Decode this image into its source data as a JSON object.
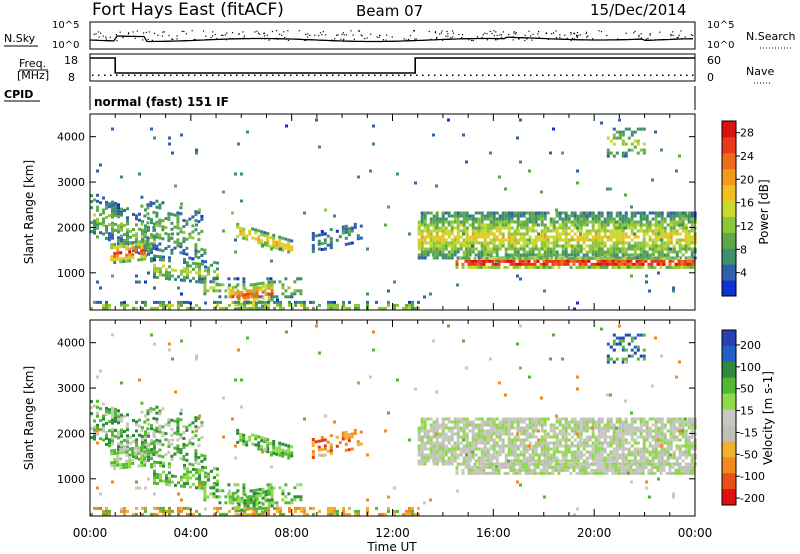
{
  "header": {
    "station": "Fort Hays East (fitACF)",
    "beam": "Beam 07",
    "date": "15/Dec/2014"
  },
  "noise_panel": {
    "left_label": "N.Sky",
    "right_label": "N.Search",
    "tick_top": "10^5",
    "tick_bottom": "10^0"
  },
  "freq_panel": {
    "left_label_1": "Freq.",
    "left_label_2": "[MHz]",
    "left_ticks": [
      "18",
      "8"
    ],
    "right_label": "Nave",
    "right_ticks": [
      "60",
      "0"
    ]
  },
  "cpid_panel": {
    "label": "CPID",
    "text": "normal (fast) 151 IF"
  },
  "colors": {
    "power": [
      "#1030d0",
      "#2f5fae",
      "#3f8f6a",
      "#5ea84a",
      "#8cc63a",
      "#c8d82c",
      "#f0c020",
      "#f29a1c",
      "#ef6a1a",
      "#e83a16",
      "#dd1010"
    ],
    "velocity": [
      "#2a3fb0",
      "#2060c8",
      "#2c8a3a",
      "#52b834",
      "#8fd84a",
      "#c8c8c0",
      "#c0c0b8",
      "#f0b030",
      "#f08a20",
      "#e85018",
      "#e01010"
    ]
  },
  "chart_data": [
    {
      "type": "heatmap",
      "title": "Power",
      "xlabel": "Time UT",
      "ylabel": "Slant Range [km]",
      "colorbar_label": "Power [dB]",
      "xlim": [
        0,
        24
      ],
      "ylim": [
        180,
        4500
      ],
      "x_ticks": [
        "00:00",
        "04:00",
        "08:00",
        "12:00",
        "16:00",
        "20:00",
        "00:00"
      ],
      "y_ticks": [
        1000,
        2000,
        3000,
        4000
      ],
      "colorbar_ticks": [
        4,
        8,
        12,
        16,
        20,
        24,
        28
      ],
      "colorbar_range": [
        0,
        30
      ]
    },
    {
      "type": "heatmap",
      "title": "Velocity",
      "xlabel": "Time UT",
      "ylabel": "Slant Range [km]",
      "colorbar_label": "Velocity [m s-1]",
      "xlim": [
        0,
        24
      ],
      "ylim": [
        180,
        4500
      ],
      "x_ticks": [
        "00:00",
        "04:00",
        "08:00",
        "12:00",
        "16:00",
        "20:00",
        "00:00"
      ],
      "y_ticks": [
        1000,
        2000,
        3000,
        4000
      ],
      "colorbar_ticks": [
        200,
        100,
        50,
        15,
        -15,
        -50,
        -100,
        -200
      ]
    }
  ]
}
